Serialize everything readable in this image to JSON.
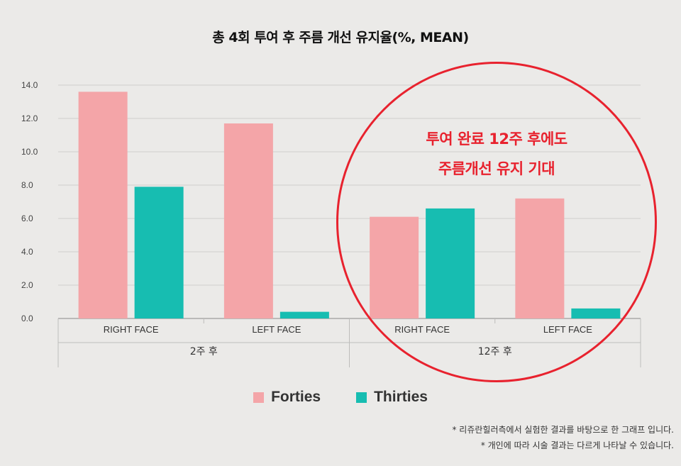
{
  "title": "총 4회 투여 후 주름 개선 유지율(%, MEAN)",
  "callout": {
    "line1": "투여 완료 12주 후에도",
    "line2": "주름개선 유지 기대"
  },
  "colors": {
    "forties": "#f4a5a8",
    "thirties": "#17bdb1",
    "highlight": "#e8222e"
  },
  "footnotes": [
    "* 리쥬란힐러측에서 실험한 결과를 바탕으로 한 그래프 입니다.",
    "* 개인에 따라 시술 결과는 다르게 나타날 수 있습니다."
  ],
  "chart_data": {
    "type": "bar",
    "categories": [
      "RIGHT FACE",
      "LEFT FACE",
      "RIGHT FACE",
      "LEFT FACE"
    ],
    "groups": [
      {
        "label": "2주 후",
        "categories": [
          0,
          1
        ]
      },
      {
        "label": "12주 후",
        "categories": [
          2,
          3
        ]
      }
    ],
    "series": [
      {
        "name": "Forties",
        "values": [
          13.6,
          11.7,
          6.1,
          7.2
        ]
      },
      {
        "name": "Thirties",
        "values": [
          7.9,
          0.4,
          6.6,
          0.6
        ]
      }
    ],
    "ylim": [
      0,
      14
    ],
    "yticks": [
      "0.0",
      "2.0",
      "4.0",
      "6.0",
      "8.0",
      "10.0",
      "12.0",
      "14.0"
    ],
    "grid": true,
    "legend": "bottom-center"
  }
}
